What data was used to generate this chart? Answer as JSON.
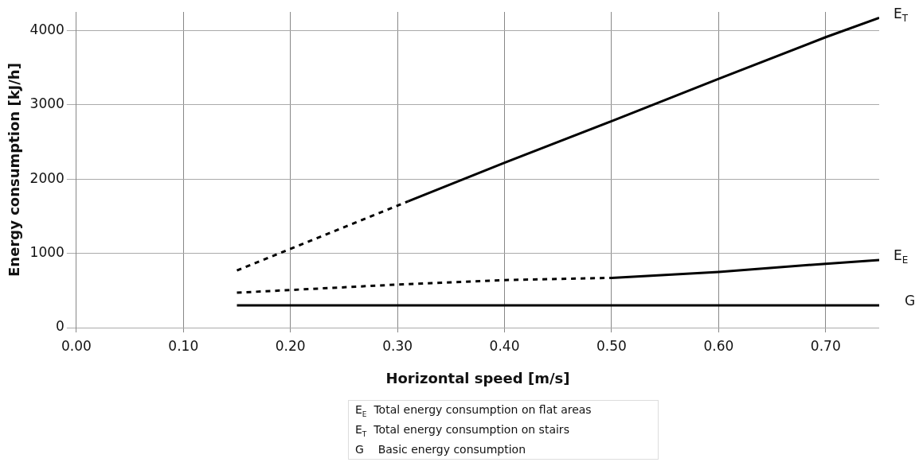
{
  "chart_data": {
    "type": "line",
    "xlabel": "Horizontal speed [m/s]",
    "ylabel": "Energy consumption [kJ/h]",
    "xlim": [
      0,
      0.75
    ],
    "xticks": [
      {
        "value": 0,
        "label": "0.00"
      },
      {
        "value": 0.1,
        "label": "0.10"
      },
      {
        "value": 0.2,
        "label": "0.20"
      },
      {
        "value": 0.3,
        "label": "0.30"
      },
      {
        "value": 0.4,
        "label": "0.40"
      },
      {
        "value": 0.5,
        "label": "0.50"
      },
      {
        "value": 0.6,
        "label": "0.60"
      },
      {
        "value": 0.7,
        "label": "0.70"
      }
    ],
    "ylim": [
      0,
      4250
    ],
    "yticks": [
      0,
      1000,
      2000,
      3000,
      4000
    ],
    "grid": true,
    "legend": false,
    "marker": "none",
    "series": [
      {
        "color": "#000000",
        "line_style": "dashed",
        "x": [
          0.15,
          0.31
        ],
        "values": [
          770,
          1700
        ]
      },
      {
        "name": "E$_{T}$",
        "color": "#000000",
        "line_style": "solid",
        "x": [
          0.31,
          0.4,
          0.5,
          0.6,
          0.7,
          0.75
        ],
        "values": [
          1700,
          2220,
          2780,
          3350,
          3910,
          4170
        ]
      },
      {
        "color": "#000000",
        "line_style": "dashed",
        "x": [
          0.15,
          0.3,
          0.4,
          0.5
        ],
        "values": [
          470,
          580,
          640,
          670
        ]
      },
      {
        "name": "E$_{E}$",
        "color": "#000000",
        "line_style": "solid",
        "x": [
          0.5,
          0.6,
          0.7,
          0.75
        ],
        "values": [
          670,
          750,
          860,
          910
        ]
      },
      {
        "name": "G",
        "color": "#000000",
        "line_style": "solid",
        "x": [
          0.15,
          0.75
        ],
        "values": [
          300,
          300
        ]
      }
    ],
    "annotations": [
      "E$_{E}$  Total energy consumption on flat areas",
      "E$_{T}$  Total energy consumption on stairs",
      "G    Basic energy consumption"
    ]
  }
}
